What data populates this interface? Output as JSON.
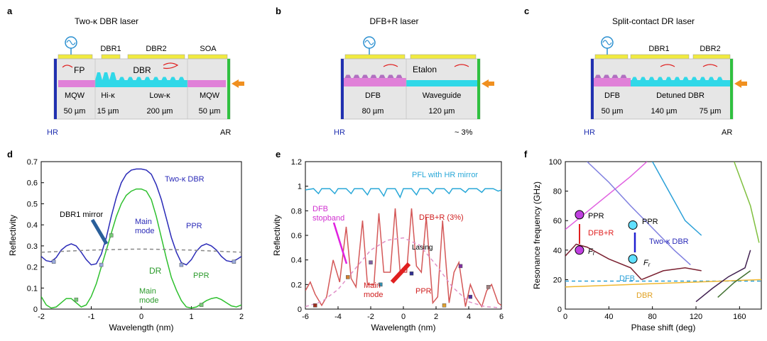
{
  "panels": {
    "a": {
      "letter": "a",
      "title": "Two-κ DBR laser",
      "contacts": [
        "DBR1",
        "DBR2",
        "SOA"
      ],
      "inner": [
        "FP",
        "DBR"
      ],
      "sections": [
        "MQW",
        "Hi-κ",
        "Low-κ",
        "MQW"
      ],
      "lengths": [
        "50 µm",
        "15 µm",
        "200 µm",
        "50 µm"
      ],
      "left_facet": "HR",
      "right_facet": "AR"
    },
    "b": {
      "letter": "b",
      "title": "DFB+R laser",
      "inner": [
        "Etalon"
      ],
      "sections": [
        "DFB",
        "Waveguide"
      ],
      "lengths": [
        "80 µm",
        "120 µm"
      ],
      "left_facet": "HR",
      "right_facet": "~ 3%"
    },
    "c": {
      "letter": "c",
      "title": "Split-contact DR laser",
      "contacts": [
        "DBR1",
        "DBR2"
      ],
      "sections": [
        "DFB",
        "Detuned DBR"
      ],
      "lengths": [
        "50 µm",
        "140 µm",
        "75 µm"
      ],
      "left_facet": "HR",
      "right_facet": "AR"
    },
    "d": {
      "letter": "d",
      "annotations": {
        "two_kappa": "Two-κ DBR",
        "dbr1_mirror": "DBR1 mirror",
        "main_mode_1": "Main",
        "main_mode_2": "mode",
        "ppr": "PPR",
        "dr": "DR",
        "main_mode_b1": "Main",
        "main_mode_b2": "mode",
        "ppr_b": "PPR"
      }
    },
    "e": {
      "letter": "e",
      "annotations": {
        "pfl": "PFL with HR mirror",
        "dfb_stopband_1": "DFB",
        "dfb_stopband_2": "stopband",
        "dfbr": "DFB+R (3%)",
        "lasing": "Lasing",
        "main_mode_1": "Main",
        "main_mode_2": "mode",
        "ppr": "PPR"
      }
    },
    "f": {
      "letter": "f",
      "annotations": {
        "ppr_left": "PPR",
        "dfbr": "DFB+R",
        "fr_left": "F",
        "fr_sub": "r",
        "ppr_right": "PPR",
        "two_kappa": "Two-κ DBR",
        "fr_right": "F",
        "dfb": "DFB",
        "dbr": "DBR"
      }
    }
  },
  "chart_data": [
    {
      "id": "d",
      "type": "line",
      "xlabel": "Wavelength (nm)",
      "ylabel": "Reflectivity",
      "xlim": [
        -2,
        2
      ],
      "ylim": [
        0,
        0.7
      ],
      "xticks": [
        -2,
        -1,
        0,
        1,
        2
      ],
      "yticks": [
        0,
        0.1,
        0.2,
        0.3,
        0.4,
        0.5,
        0.6,
        0.7
      ],
      "series": [
        {
          "key": "two_kappa",
          "color": "#2b2bb8",
          "x": [
            -2,
            -1.9,
            -1.8,
            -1.7,
            -1.6,
            -1.5,
            -1.4,
            -1.3,
            -1.2,
            -1.1,
            -1.0,
            -0.9,
            -0.8,
            -0.7,
            -0.6,
            -0.5,
            -0.4,
            -0.3,
            -0.2,
            -0.1,
            0,
            0.1,
            0.2,
            0.3,
            0.4,
            0.5,
            0.6,
            0.7,
            0.8,
            0.9,
            1.0,
            1.1,
            1.2,
            1.3,
            1.4,
            1.5,
            1.6,
            1.7,
            1.8,
            1.9,
            2.0
          ],
          "y": [
            0.25,
            0.23,
            0.225,
            0.245,
            0.28,
            0.3,
            0.31,
            0.3,
            0.27,
            0.235,
            0.21,
            0.215,
            0.26,
            0.34,
            0.44,
            0.53,
            0.6,
            0.64,
            0.66,
            0.665,
            0.665,
            0.66,
            0.64,
            0.59,
            0.52,
            0.43,
            0.34,
            0.27,
            0.22,
            0.21,
            0.235,
            0.275,
            0.3,
            0.31,
            0.3,
            0.28,
            0.25,
            0.23,
            0.225,
            0.235,
            0.25
          ]
        },
        {
          "key": "dr",
          "color": "#2ec02e",
          "x": [
            -2,
            -1.9,
            -1.8,
            -1.7,
            -1.6,
            -1.5,
            -1.4,
            -1.3,
            -1.2,
            -1.1,
            -1.0,
            -0.9,
            -0.8,
            -0.7,
            -0.6,
            -0.5,
            -0.4,
            -0.3,
            -0.2,
            -0.1,
            0,
            0.1,
            0.2,
            0.3,
            0.4,
            0.5,
            0.6,
            0.7,
            0.8,
            0.9,
            1.0,
            1.1,
            1.2,
            1.3,
            1.4,
            1.5,
            1.6,
            1.7,
            1.8,
            1.9,
            2.0
          ],
          "y": [
            0.06,
            0.02,
            0.005,
            0.01,
            0.03,
            0.05,
            0.05,
            0.03,
            0.01,
            0.02,
            0.06,
            0.12,
            0.2,
            0.28,
            0.36,
            0.44,
            0.5,
            0.54,
            0.56,
            0.57,
            0.57,
            0.56,
            0.52,
            0.44,
            0.34,
            0.24,
            0.15,
            0.09,
            0.04,
            0.01,
            0.005,
            0.01,
            0.025,
            0.04,
            0.05,
            0.055,
            0.045,
            0.03,
            0.015,
            0.01,
            0.02
          ]
        },
        {
          "key": "dbr1_mirror",
          "color": "#888888",
          "dash": true,
          "x": [
            -2,
            -1.5,
            -1,
            -0.5,
            0,
            0.5,
            1,
            1.5,
            2
          ],
          "y": [
            0.27,
            0.275,
            0.28,
            0.283,
            0.285,
            0.283,
            0.28,
            0.275,
            0.27
          ]
        }
      ],
      "markers": [
        {
          "x": -1.75,
          "y": 0.225,
          "color": "#9ad"
        },
        {
          "x": -0.8,
          "y": 0.21,
          "color": "#9ad"
        },
        {
          "x": 0.8,
          "y": 0.21,
          "color": "#9ad"
        },
        {
          "x": 1.85,
          "y": 0.225,
          "color": "#9ad"
        },
        {
          "x": -1.3,
          "y": 0.045,
          "color": "#7c7"
        },
        {
          "x": -0.6,
          "y": 0.35,
          "color": "#7c7"
        },
        {
          "x": 1.2,
          "y": 0.02,
          "color": "#7c7"
        }
      ]
    },
    {
      "id": "e",
      "type": "line",
      "xlabel": "Wavelength (nm)",
      "ylabel": "Reflectivity",
      "xlim": [
        -6,
        6
      ],
      "ylim": [
        0,
        1.2
      ],
      "xticks": [
        -6,
        -4,
        -2,
        0,
        2,
        4,
        6
      ],
      "yticks": [
        0,
        0.2,
        0.4,
        0.6,
        0.8,
        1.0,
        1.2
      ],
      "series": [
        {
          "key": "pfl",
          "color": "#29a8d8",
          "x": [
            -6,
            -5.5,
            -5.2,
            -5,
            -4.5,
            -4.2,
            -4,
            -3.5,
            -3.2,
            -3,
            -2.5,
            -2.2,
            -2,
            -1.5,
            -1.2,
            -1,
            -0.5,
            -0.2,
            0,
            0.5,
            0.8,
            1,
            1.5,
            1.8,
            2,
            2.5,
            2.8,
            3,
            3.5,
            3.8,
            4,
            4.5,
            4.8,
            5,
            5.5,
            5.8,
            6
          ],
          "y": [
            0.97,
            0.98,
            0.94,
            0.98,
            0.98,
            0.94,
            0.98,
            0.98,
            0.94,
            0.98,
            0.98,
            0.93,
            0.98,
            0.98,
            0.92,
            0.98,
            0.98,
            0.91,
            0.98,
            0.98,
            0.93,
            0.98,
            0.98,
            0.94,
            0.98,
            0.98,
            0.94,
            0.98,
            0.98,
            0.95,
            0.98,
            0.98,
            0.95,
            0.98,
            0.98,
            0.96,
            0.97
          ]
        },
        {
          "key": "dfbr",
          "color": "#d45858",
          "x": [
            -6,
            -5.7,
            -5.4,
            -5.0,
            -4.7,
            -4.3,
            -3.9,
            -3.5,
            -3.2,
            -2.9,
            -2.5,
            -2.2,
            -1.8,
            -1.5,
            -1.2,
            -0.8,
            -0.5,
            -0.2,
            0.2,
            0.5,
            0.8,
            1.1,
            1.4,
            1.8,
            2.1,
            2.4,
            2.8,
            3.1,
            3.4,
            3.8,
            4.1,
            4.4,
            4.8,
            5.1,
            5.4,
            5.8,
            6.0
          ],
          "y": [
            0.15,
            0.22,
            0.12,
            0.03,
            0.1,
            0.4,
            0.22,
            0.67,
            0.25,
            0.18,
            0.72,
            0.2,
            0.2,
            0.78,
            0.3,
            0.3,
            0.82,
            0.3,
            0.3,
            0.82,
            0.35,
            0.3,
            0.75,
            0.05,
            0.1,
            0.72,
            0.05,
            0.3,
            0.38,
            0.02,
            0.2,
            0.1,
            0.02,
            0.15,
            0.2,
            0.05,
            0.03
          ]
        },
        {
          "key": "dfb_stopband",
          "color": "#e090c8",
          "dash": true,
          "x": [
            -6,
            -5,
            -4,
            -3,
            -2,
            -1,
            0,
            1,
            2,
            3,
            4,
            5,
            6
          ],
          "y": [
            0.02,
            0.06,
            0.16,
            0.32,
            0.48,
            0.56,
            0.58,
            0.52,
            0.36,
            0.18,
            0.06,
            0.02,
            0.01
          ]
        }
      ],
      "markers": [
        {
          "x": -5.4,
          "y": 0.03,
          "color": "#a03020"
        },
        {
          "x": -3.4,
          "y": 0.26,
          "color": "#d08030"
        },
        {
          "x": -1.4,
          "y": 0.2,
          "color": "#3090b0"
        },
        {
          "x": -2,
          "y": 0.38,
          "color": "#8060a0"
        },
        {
          "x": 0.5,
          "y": 0.29,
          "color": "#303090"
        },
        {
          "x": 2.5,
          "y": 0.03,
          "color": "#e0a030"
        },
        {
          "x": 3.5,
          "y": 0.35,
          "color": "#8030a0"
        },
        {
          "x": 4.1,
          "y": 0.1,
          "color": "#5030a0"
        },
        {
          "x": 5.2,
          "y": 0.18,
          "color": "#a08080"
        }
      ]
    },
    {
      "id": "f",
      "type": "line",
      "xlabel": "Phase shift (deg)",
      "ylabel": "Resonance frequency (GHz)",
      "xlim": [
        0,
        180
      ],
      "ylim": [
        0,
        100
      ],
      "xticks": [
        0,
        40,
        80,
        120,
        160
      ],
      "yticks": [
        0,
        20,
        40,
        60,
        80,
        100
      ],
      "series": [
        {
          "key": "dfb",
          "color": "#2aa0d8",
          "dash": true,
          "x": [
            0,
            180
          ],
          "y": [
            19,
            19
          ]
        },
        {
          "key": "dbr",
          "color": "#f0b830",
          "x": [
            0,
            180
          ],
          "y": [
            15,
            20
          ]
        },
        {
          "key": "fr_curve",
          "color": "#7a2030",
          "x": [
            0,
            10,
            20,
            40,
            60,
            70
          ],
          "y": [
            36,
            44,
            42,
            34,
            28,
            20
          ]
        },
        {
          "key": "fr_curve2",
          "color": "#7a2030",
          "x": [
            70,
            90,
            110,
            125
          ],
          "y": [
            20,
            26,
            28,
            26
          ]
        },
        {
          "key": "fr_curve3",
          "color": "#402050",
          "x": [
            120,
            135,
            150,
            165,
            170
          ],
          "y": [
            5,
            14,
            22,
            28,
            40
          ]
        },
        {
          "key": "ppr_pink",
          "color": "#e060e0",
          "x": [
            0,
            20,
            40,
            60,
            75
          ],
          "y": [
            54,
            66,
            78,
            90,
            100
          ]
        },
        {
          "key": "ppr_violet",
          "color": "#8080e0",
          "x": [
            20,
            40,
            60,
            80,
            100,
            115
          ],
          "y": [
            100,
            86,
            70,
            55,
            40,
            30
          ]
        },
        {
          "key": "ppr_teal",
          "color": "#2aa0d8",
          "x": [
            80,
            95,
            110,
            125
          ],
          "y": [
            100,
            80,
            60,
            50
          ]
        },
        {
          "key": "upper_grn",
          "color": "#80c040",
          "x": [
            155,
            170,
            178
          ],
          "y": [
            100,
            70,
            45
          ]
        },
        {
          "key": "grn_low",
          "color": "#407030",
          "x": [
            140,
            155,
            170
          ],
          "y": [
            8,
            18,
            26
          ]
        }
      ],
      "markers": [
        {
          "x": 13,
          "y": 64,
          "color": "#c040e0",
          "size": 10
        },
        {
          "x": 13,
          "y": 40,
          "color": "#c040e0",
          "size": 10
        },
        {
          "x": 62,
          "y": 57,
          "color": "#60e0ff",
          "size": 10
        },
        {
          "x": 62,
          "y": 34,
          "color": "#60e0ff",
          "size": 10
        }
      ]
    }
  ]
}
